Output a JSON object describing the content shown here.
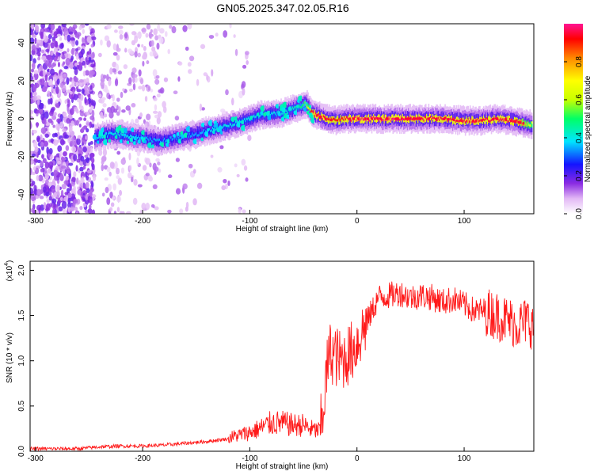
{
  "title": "GN05.2025.347.02.05.R16",
  "chart_data": [
    {
      "type": "heatmap",
      "xlabel": "Height of straight line (km)",
      "ylabel": "Frequency (Hz)",
      "xlim": [
        -305,
        165
      ],
      "ylim": [
        -50,
        50
      ],
      "x_ticks": [
        -300,
        -200,
        -100,
        0,
        100
      ],
      "y_ticks": [
        -40,
        -20,
        0,
        20,
        40
      ],
      "colorbar": {
        "label": "Normalized spectral amplitude",
        "range": [
          0,
          1
        ],
        "ticks": [
          "0.0",
          "0.2",
          "0.4",
          "0.6",
          "0.8"
        ],
        "colors": [
          "#ffffff",
          "#e2b8f5",
          "#8a2be2",
          "#1414ff",
          "#00e5ff",
          "#00ff66",
          "#c8ff00",
          "#ffff00",
          "#ff8800",
          "#ff0000",
          "#ff1493"
        ]
      },
      "ridge": {
        "x": [
          -245,
          -230,
          -215,
          -200,
          -185,
          -170,
          -150,
          -130,
          -110,
          -90,
          -70,
          -55,
          -48,
          -42,
          -30,
          -20,
          -10,
          0,
          20,
          40,
          60,
          80,
          100,
          115,
          130,
          145,
          160
        ],
        "y": [
          -10,
          -8,
          -9,
          -10,
          -12,
          -10,
          -8,
          -5,
          -2,
          2,
          3,
          6,
          8,
          3,
          0,
          -1,
          0,
          0,
          0,
          0,
          0,
          0,
          -1,
          -1,
          0,
          -1,
          -3
        ],
        "amplitude": [
          0.35,
          0.4,
          0.4,
          0.35,
          0.35,
          0.35,
          0.35,
          0.4,
          0.4,
          0.4,
          0.4,
          0.45,
          0.55,
          0.95,
          0.95,
          0.9,
          0.95,
          0.98,
          0.98,
          0.98,
          0.95,
          0.95,
          0.95,
          0.95,
          0.95,
          0.95,
          0.7
        ]
      },
      "noise_regions": [
        {
          "x_range": [
            -305,
            -245
          ],
          "density": "high"
        },
        {
          "x_range": [
            -240,
            -185
          ],
          "density": "medium"
        },
        {
          "x_range": [
            -185,
            -100
          ],
          "density": "low"
        }
      ]
    },
    {
      "type": "line",
      "xlabel": "Height of straight line (km)",
      "ylabel": "SNR (10 * v/v)",
      "y_multiplier": "(x10",
      "y_multiplier_exp": "4",
      "y_multiplier_close": ")",
      "xlim": [
        -305,
        165
      ],
      "ylim": [
        0,
        2.1
      ],
      "x_ticks": [
        -300,
        -200,
        -100,
        0,
        100
      ],
      "y_ticks": [
        "0.0",
        "0.5",
        "1.0",
        "1.5",
        "2.0"
      ],
      "line_color": "#ff1a1a",
      "series": [
        {
          "x": [
            -305,
            -280,
            -260,
            -240,
            -220,
            -200,
            -180,
            -160,
            -140,
            -120,
            -100,
            -90,
            -80,
            -70,
            -60,
            -50,
            -45,
            -40,
            -35,
            -32,
            -28,
            -25,
            -20,
            -15,
            -10,
            -5,
            0,
            10,
            20,
            30,
            40,
            50,
            60,
            70,
            80,
            90,
            100,
            110,
            120,
            130,
            140,
            150,
            160,
            165
          ],
          "values": [
            0.02,
            0.02,
            0.02,
            0.04,
            0.05,
            0.05,
            0.06,
            0.08,
            0.1,
            0.13,
            0.18,
            0.22,
            0.27,
            0.27,
            0.25,
            0.25,
            0.22,
            0.2,
            0.2,
            0.4,
            0.9,
            1.1,
            1.05,
            1.0,
            1.05,
            1.1,
            1.2,
            1.45,
            1.7,
            1.72,
            1.75,
            1.7,
            1.72,
            1.7,
            1.65,
            1.68,
            1.62,
            1.55,
            1.55,
            1.5,
            1.45,
            1.4,
            1.45,
            1.35
          ]
        }
      ]
    }
  ]
}
